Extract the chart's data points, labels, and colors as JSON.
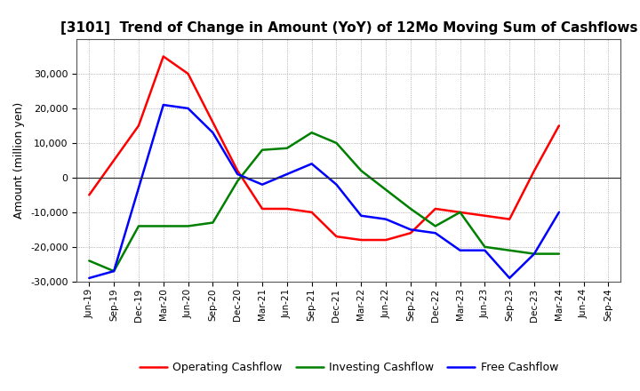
{
  "title": "[3101]  Trend of Change in Amount (YoY) of 12Mo Moving Sum of Cashflows",
  "ylabel": "Amount (million yen)",
  "x_labels": [
    "Jun-19",
    "Sep-19",
    "Dec-19",
    "Mar-20",
    "Jun-20",
    "Sep-20",
    "Dec-20",
    "Mar-21",
    "Jun-21",
    "Sep-21",
    "Dec-21",
    "Mar-22",
    "Jun-22",
    "Sep-22",
    "Dec-22",
    "Mar-23",
    "Jun-23",
    "Sep-23",
    "Dec-23",
    "Mar-24",
    "Jun-24",
    "Sep-24"
  ],
  "operating_cashflow": [
    -5000,
    null,
    15000,
    35000,
    30000,
    null,
    2000,
    -9000,
    -9000,
    -10000,
    -17000,
    -18000,
    -18000,
    -16000,
    -9000,
    -10000,
    -11000,
    -12000,
    2000,
    15000,
    null,
    null
  ],
  "investing_cashflow": [
    -24000,
    -27000,
    -14000,
    -14000,
    -14000,
    -13000,
    -1000,
    8000,
    8500,
    13000,
    10000,
    2000,
    null,
    -9000,
    -14000,
    -10000,
    -20000,
    -21000,
    -22000,
    -22000,
    null,
    null
  ],
  "free_cashflow": [
    -29000,
    -27000,
    null,
    21000,
    20000,
    13000,
    1000,
    -2000,
    1000,
    4000,
    -2000,
    -11000,
    -12000,
    -15000,
    -16000,
    -21000,
    -21000,
    -29000,
    -22000,
    -10000,
    null,
    null
  ],
  "operating_color": "#ff0000",
  "investing_color": "#008000",
  "free_color": "#0000ff",
  "ylim": [
    -30000,
    40000
  ],
  "yticks": [
    -30000,
    -20000,
    -10000,
    0,
    10000,
    20000,
    30000
  ],
  "background_color": "#ffffff",
  "grid_color": "#999999",
  "line_width": 1.8,
  "title_fontsize": 11,
  "legend_labels": [
    "Operating Cashflow",
    "Investing Cashflow",
    "Free Cashflow"
  ]
}
